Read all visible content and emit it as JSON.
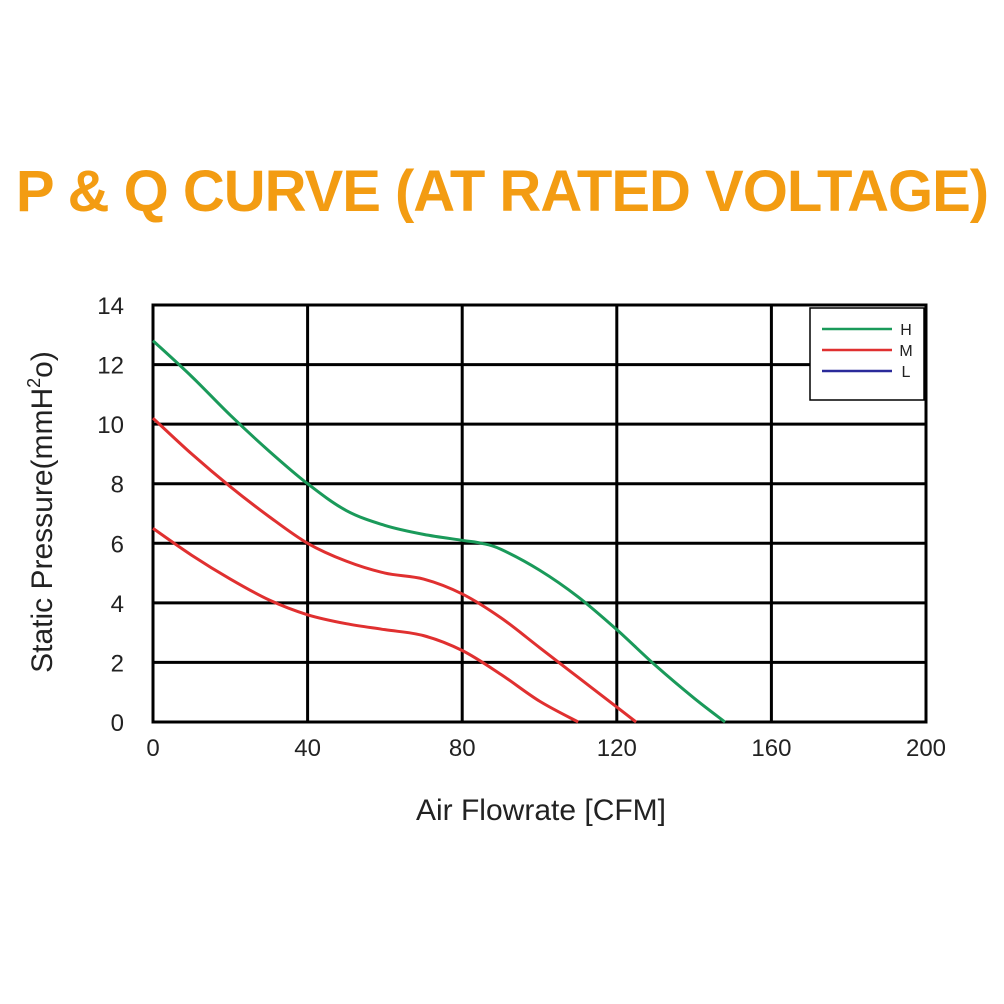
{
  "title": "P & Q CURVE (AT RATED VOLTAGE)",
  "chart_data": {
    "type": "line",
    "xlabel": "Air Flowrate [CFM]",
    "ylabel": "Static Pressure(mmH",
    "ylabel_sup": "2",
    "ylabel_end": "o)",
    "xlim": [
      0,
      200
    ],
    "ylim": [
      0,
      14
    ],
    "x_ticks": [
      0,
      40,
      80,
      120,
      160,
      200
    ],
    "y_ticks": [
      0,
      2,
      4,
      6,
      8,
      10,
      12,
      14
    ],
    "grid": true,
    "legend_position": "top-right",
    "series": [
      {
        "name": "H",
        "color": "#1a9a5a",
        "x": [
          0,
          10,
          20,
          30,
          40,
          50,
          60,
          70,
          80,
          85,
          90,
          100,
          110,
          120,
          130,
          140,
          148
        ],
        "y": [
          12.8,
          11.6,
          10.3,
          9.1,
          8.0,
          7.1,
          6.6,
          6.3,
          6.1,
          6.0,
          5.8,
          5.1,
          4.2,
          3.1,
          1.9,
          0.8,
          0
        ]
      },
      {
        "name": "M",
        "color": "#e03030",
        "x": [
          0,
          10,
          20,
          30,
          40,
          50,
          60,
          70,
          80,
          90,
          100,
          110,
          120,
          125
        ],
        "y": [
          10.2,
          9.0,
          7.9,
          6.9,
          6.0,
          5.4,
          5.0,
          4.8,
          4.3,
          3.5,
          2.5,
          1.5,
          0.5,
          0
        ]
      },
      {
        "name": "L",
        "color": "#2a2a9a",
        "x": [],
        "y": []
      },
      {
        "name": "",
        "color": "#e03030",
        "x": [
          0,
          10,
          20,
          30,
          40,
          50,
          60,
          70,
          80,
          90,
          100,
          110
        ],
        "y": [
          6.5,
          5.6,
          4.8,
          4.1,
          3.6,
          3.3,
          3.1,
          2.9,
          2.4,
          1.6,
          0.7,
          0
        ]
      }
    ]
  }
}
